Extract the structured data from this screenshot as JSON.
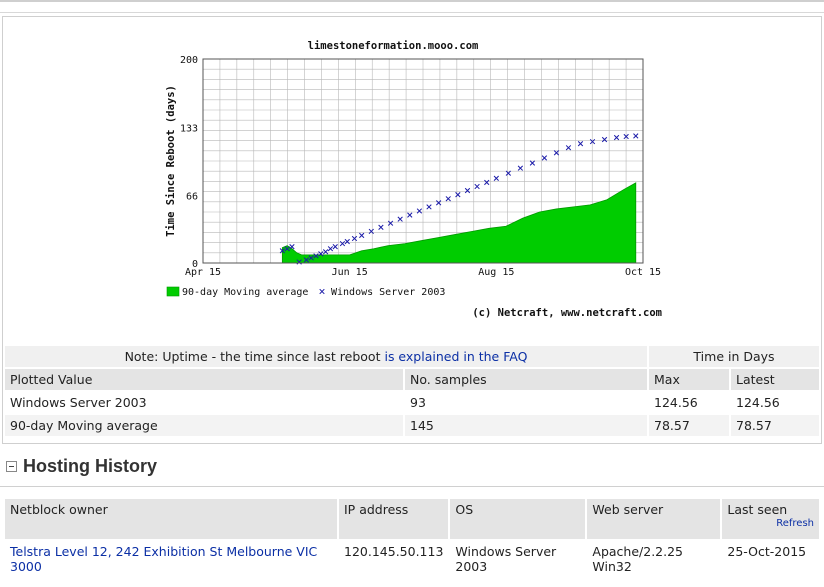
{
  "chart_data": {
    "type": "area",
    "title": "limestoneformation.mooo.com",
    "ylabel": "Time Since Reboot (days)",
    "xlabel": "",
    "ylim": [
      0,
      200
    ],
    "y_ticks": [
      "0",
      "66",
      "133",
      "200"
    ],
    "x_ticks": [
      "Apr 15",
      "Jun 15",
      "Aug 15",
      "Oct 15"
    ],
    "grid": true,
    "legend_position": "bottom-left",
    "credit": "(c) Netcraft, www.netcraft.com",
    "series": [
      {
        "name": "90-day Moving average",
        "kind": "area",
        "color": "#00cc00",
        "x": [
          "May 18",
          "May 20",
          "May 22",
          "May 24",
          "May 26",
          "May 28",
          "Jun 1",
          "Jun 5",
          "Jun 10",
          "Jun 15",
          "Jun 20",
          "Jun 25",
          "Jul 1",
          "Jul 8",
          "Jul 15",
          "Jul 22",
          "Jul 29",
          "Aug 5",
          "Aug 12",
          "Aug 19",
          "Aug 26",
          "Sep 2",
          "Sep 9",
          "Sep 16",
          "Sep 23",
          "Sep 30",
          "Oct 7",
          "Oct 12"
        ],
        "values": [
          15,
          17,
          14,
          10,
          8,
          8,
          8,
          8,
          8,
          8,
          12,
          14,
          17,
          19,
          22,
          25,
          28,
          31,
          34,
          36,
          44,
          50,
          53,
          55,
          57,
          62,
          72,
          78.57
        ]
      },
      {
        "name": "Windows Server 2003",
        "kind": "scatter",
        "color": "#1a1aa8",
        "marker": "x",
        "x": [
          "May 18",
          "May 20",
          "May 22",
          "May 25",
          "May 28",
          "May 30",
          "Jun 1",
          "Jun 3",
          "Jun 5",
          "Jun 7",
          "Jun 9",
          "Jun 12",
          "Jun 14",
          "Jun 17",
          "Jun 20",
          "Jun 24",
          "Jun 28",
          "Jul 2",
          "Jul 6",
          "Jul 10",
          "Jul 14",
          "Jul 18",
          "Jul 22",
          "Jul 26",
          "Jul 30",
          "Aug 3",
          "Aug 7",
          "Aug 11",
          "Aug 15",
          "Aug 20",
          "Aug 25",
          "Aug 30",
          "Sep 4",
          "Sep 9",
          "Sep 14",
          "Sep 19",
          "Sep 24",
          "Sep 29",
          "Oct 4",
          "Oct 8",
          "Oct 12"
        ],
        "values": [
          12,
          14,
          16,
          1,
          3,
          5,
          7,
          9,
          11,
          14,
          16,
          19,
          21,
          24,
          27,
          31,
          35,
          39,
          43,
          47,
          51,
          55,
          59,
          63,
          67,
          71,
          75,
          79,
          83,
          88,
          93,
          98,
          103,
          108,
          113,
          117,
          119,
          121,
          123,
          124,
          124.56
        ]
      }
    ]
  },
  "uptime_table": {
    "note_prefix": "Note: Uptime - the time since last reboot",
    "note_link": "is explained in the FAQ",
    "time_header": "Time in Days",
    "headers": [
      "Plotted Value",
      "No. samples",
      "Max",
      "Latest"
    ],
    "rows": [
      [
        "Windows Server 2003",
        "93",
        "124.56",
        "124.56"
      ],
      [
        "90-day Moving average",
        "145",
        "78.57",
        "78.57"
      ]
    ]
  },
  "hosting": {
    "title": "Hosting History",
    "headers": [
      "Netblock owner",
      "IP address",
      "OS",
      "Web server",
      "Last seen"
    ],
    "refresh": "Refresh",
    "rows": [
      [
        "Telstra Level 12, 242 Exhibition St Melbourne VIC 3000",
        "120.145.50.113",
        "Windows Server 2003",
        "Apache/2.2.25 Win32",
        "25-Oct-2015"
      ]
    ]
  }
}
